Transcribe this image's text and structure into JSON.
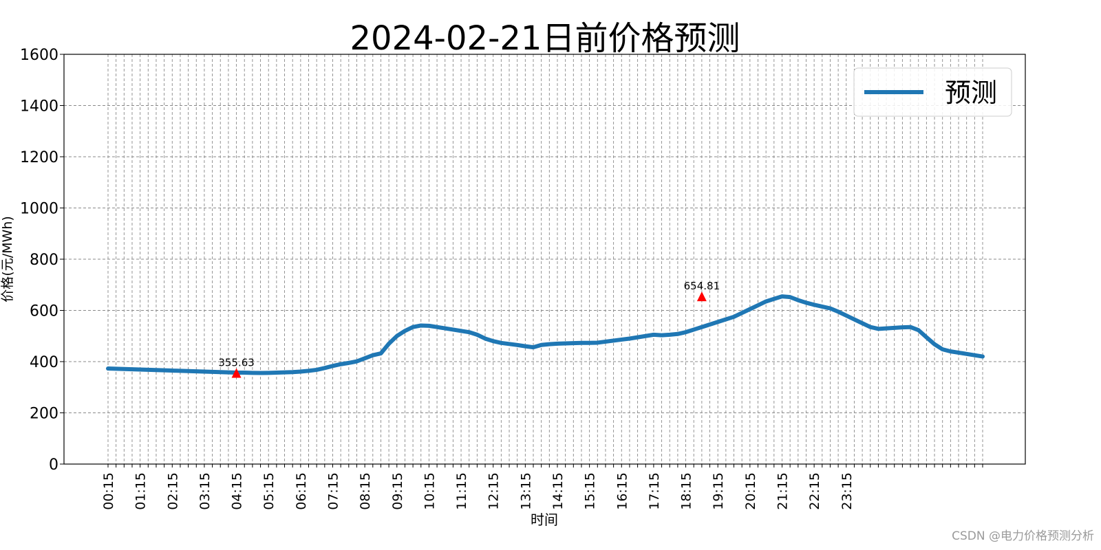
{
  "watermark": "CSDN @电力价格预测分析",
  "chart_data": {
    "type": "line",
    "title": "2024-02-21日前价格预测",
    "xlabel": "时间",
    "ylabel": "价格(元/MWh)",
    "ylim": [
      0,
      1600
    ],
    "yticks": [
      0,
      200,
      400,
      600,
      800,
      1000,
      1200,
      1400,
      1600
    ],
    "grid": true,
    "legend_position": "top-right",
    "line_color": "#1f77b4",
    "marker_color": "#ff0000",
    "x_tick_labels": [
      "00:15",
      "01:15",
      "02:15",
      "03:15",
      "04:15",
      "05:15",
      "06:15",
      "07:15",
      "08:15",
      "09:15",
      "10:15",
      "11:15",
      "12:15",
      "13:15",
      "14:15",
      "15:15",
      "16:15",
      "17:15",
      "18:15",
      "19:15",
      "20:15",
      "21:15",
      "22:15",
      "23:15"
    ],
    "series": [
      {
        "name": "预测",
        "x_start": "00:15",
        "x_step_minutes": 15,
        "values": [
          373,
          372,
          371,
          370,
          369,
          368,
          367,
          366,
          365,
          364,
          363,
          362,
          361,
          360,
          359,
          358,
          357,
          357,
          356,
          355.63,
          356,
          357,
          358,
          359,
          361,
          364,
          368,
          375,
          383,
          390,
          395,
          401,
          413,
          425,
          432,
          470,
          500,
          520,
          535,
          541,
          540,
          535,
          530,
          525,
          520,
          515,
          505,
          490,
          480,
          473,
          469,
          465,
          460,
          456,
          465,
          468,
          470,
          471,
          472,
          473,
          473,
          474,
          478,
          482,
          486,
          490,
          495,
          500,
          505,
          503,
          505,
          508,
          515,
          525,
          535,
          545,
          555,
          565,
          575,
          590,
          605,
          620,
          635,
          645,
          654.81,
          652,
          640,
          630,
          622,
          615,
          608,
          595,
          580,
          565,
          550,
          535,
          528,
          530,
          532,
          534,
          535,
          523,
          495,
          468,
          448,
          440,
          435,
          430,
          425,
          420
        ]
      }
    ],
    "annotations": [
      {
        "x": "04:15",
        "y": 355.63,
        "label": "355.63"
      },
      {
        "x": "18:45",
        "y": 654.81,
        "label": "654.81"
      }
    ]
  }
}
